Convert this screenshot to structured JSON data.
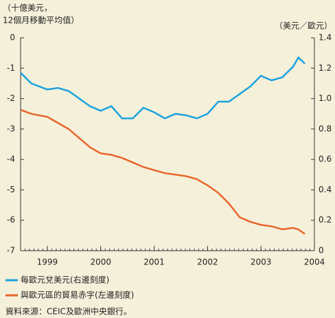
{
  "chart_data": {
    "type": "line",
    "ylabel": [
      "（十億美元，",
      "12個月移動平均值）"
    ],
    "y2label": "（美元／歐元）",
    "x": [
      1998.5,
      1998.7,
      1999.0,
      1999.2,
      1999.4,
      1999.6,
      1999.8,
      2000.0,
      2000.2,
      2000.4,
      2000.6,
      2000.8,
      2001.0,
      2001.2,
      2001.4,
      2001.6,
      2001.8,
      2002.0,
      2002.2,
      2002.4,
      2002.6,
      2002.8,
      2003.0,
      2003.2,
      2003.4,
      2003.6,
      2003.7,
      2003.82
    ],
    "xlim": [
      1998.5,
      2004
    ],
    "xticks": [
      1999,
      2000,
      2001,
      2002,
      2003,
      2004
    ],
    "ylim": [
      -7,
      0
    ],
    "yticks": [
      0,
      -1,
      -2,
      -3,
      -4,
      -5,
      -6,
      -7
    ],
    "y2lim": [
      0,
      1.4
    ],
    "y2ticks": [
      0,
      0.2,
      0.4,
      0.6,
      0.8,
      {
        "value": 1,
        "label": "1.0"
      },
      1.2,
      1.4
    ],
    "series": [
      {
        "name": "每歐元兌美元(右邊刻度)",
        "color": "#1ba2de",
        "axis": "y2",
        "values": [
          1.17,
          1.1,
          1.06,
          1.07,
          1.05,
          1.0,
          0.95,
          0.92,
          0.95,
          0.87,
          0.87,
          0.94,
          0.91,
          0.87,
          0.9,
          0.89,
          0.87,
          0.9,
          0.98,
          0.98,
          1.03,
          1.08,
          1.15,
          1.12,
          1.14,
          1.21,
          1.27,
          1.23
        ]
      },
      {
        "name": "與歐元區的貿易赤字(左邊刻度)",
        "color": "#e8652b",
        "values": [
          -2.37,
          -2.5,
          -2.6,
          -2.8,
          -3.0,
          -3.3,
          -3.6,
          -3.8,
          -3.85,
          -3.95,
          -4.1,
          -4.25,
          -4.35,
          -4.45,
          -4.5,
          -4.55,
          -4.65,
          -4.85,
          -5.1,
          -5.45,
          -5.9,
          -6.05,
          -6.15,
          -6.2,
          -6.3,
          -6.25,
          -6.3,
          -6.45
        ]
      }
    ],
    "source": "資料來源：CEIC及歐洲中央銀行。"
  }
}
